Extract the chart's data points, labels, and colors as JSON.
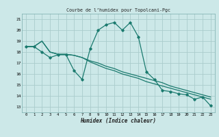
{
  "title": "Courbe de l’humidex pour Topolcani-Pgc",
  "xlabel": "Humidex (Indice chaleur)",
  "bg_color": "#cce8e8",
  "grid_color": "#aacccc",
  "line_color": "#1a7a6e",
  "xlim": [
    -0.5,
    23.5
  ],
  "ylim": [
    12.5,
    21.5
  ],
  "yticks": [
    13,
    14,
    15,
    16,
    17,
    18,
    19,
    20,
    21
  ],
  "xticks": [
    0,
    1,
    2,
    3,
    4,
    5,
    6,
    7,
    8,
    9,
    10,
    11,
    12,
    13,
    14,
    15,
    16,
    17,
    18,
    19,
    20,
    21,
    22,
    23
  ],
  "series1_x": [
    0,
    1,
    2,
    3,
    4,
    5,
    6,
    7,
    8,
    9,
    10,
    11,
    12,
    13,
    14,
    15,
    16,
    17,
    18,
    19,
    20,
    21,
    22,
    23
  ],
  "series1_y": [
    18.5,
    18.5,
    18.0,
    17.5,
    17.75,
    17.75,
    16.3,
    15.5,
    18.3,
    20.0,
    20.5,
    20.7,
    20.0,
    20.7,
    19.4,
    16.2,
    15.5,
    14.5,
    14.4,
    14.2,
    14.1,
    13.7,
    13.9,
    13.1
  ],
  "series2_x": [
    0,
    1,
    2,
    3,
    4,
    5,
    6,
    7,
    8,
    9,
    10,
    11,
    12,
    13,
    14,
    15,
    16,
    17,
    18,
    19,
    20,
    21,
    22,
    23
  ],
  "series2_y": [
    18.5,
    18.5,
    19.0,
    18.0,
    17.8,
    17.8,
    17.7,
    17.5,
    17.2,
    17.0,
    16.7,
    16.5,
    16.2,
    16.0,
    15.8,
    15.6,
    15.4,
    15.2,
    14.9,
    14.7,
    14.5,
    14.3,
    14.1,
    13.9
  ],
  "series3_x": [
    0,
    1,
    2,
    3,
    4,
    5,
    6,
    7,
    8,
    9,
    10,
    11,
    12,
    13,
    14,
    15,
    16,
    17,
    18,
    19,
    20,
    21,
    22,
    23
  ],
  "series3_y": [
    18.5,
    18.5,
    19.0,
    18.0,
    17.8,
    17.8,
    17.7,
    17.5,
    17.1,
    16.8,
    16.5,
    16.3,
    16.0,
    15.8,
    15.6,
    15.3,
    15.1,
    14.9,
    14.7,
    14.5,
    14.3,
    14.1,
    13.9,
    13.7
  ]
}
